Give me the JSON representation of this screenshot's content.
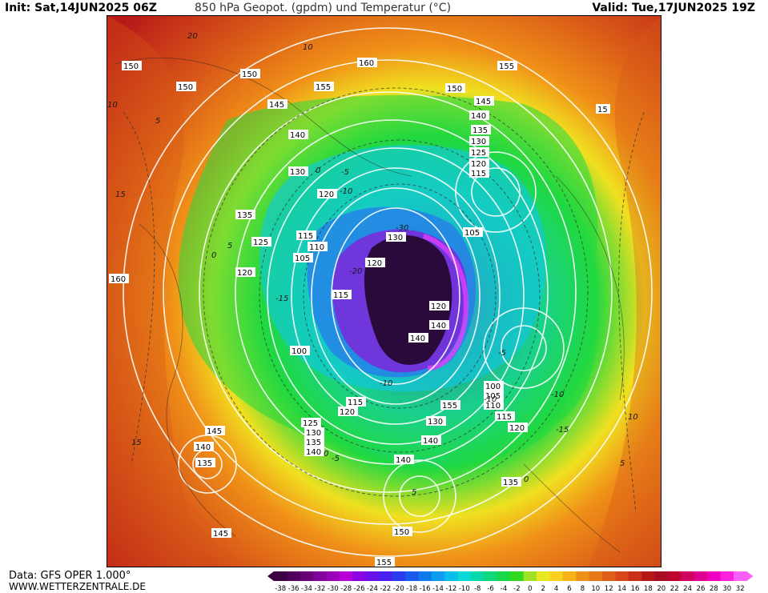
{
  "header": {
    "init": "Init: Sat,14JUN2025 06Z",
    "title": "850 hPa Geopot. (gpdm) und Temperatur (°C)",
    "valid": "Valid: Tue,17JUN2025 19Z"
  },
  "footer": {
    "source": "Data: GFS OPER 1.000°",
    "website": "WWW.WETTERZENTRALE.DE"
  },
  "colors": {
    "arctic_core": "#2a0a3a",
    "purple": "#8a1ad8",
    "magenta": "#e040ff",
    "blue": "#2a6ef2",
    "cyan": "#10c8e8",
    "green": "#20d840",
    "yellow": "#f0e020",
    "orange": "#f09018",
    "dark_orange": "#d85818",
    "red": "#b81818",
    "contour": "#ffffff"
  },
  "legend": {
    "ticks": [
      "-38",
      "-36",
      "-34",
      "-32",
      "-30",
      "-28",
      "-26",
      "-24",
      "-22",
      "-20",
      "-18",
      "-16",
      "-14",
      "-12",
      "-10",
      "-8",
      "-6",
      "-4",
      "-2",
      "0",
      "2",
      "4",
      "6",
      "8",
      "10",
      "12",
      "14",
      "16",
      "18",
      "20",
      "22",
      "24",
      "26",
      "28",
      "30",
      "32"
    ],
    "colors": [
      "#3a0040",
      "#50005a",
      "#6a0078",
      "#84009a",
      "#9c00b8",
      "#b800d8",
      "#8a00e0",
      "#6a10e8",
      "#4a20f0",
      "#2a3cf0",
      "#1a5af0",
      "#107af0",
      "#0c9cf0",
      "#08bcec",
      "#08d8d8",
      "#08d8a8",
      "#10d878",
      "#18d848",
      "#30d820",
      "#a0e020",
      "#e8e820",
      "#f8d020",
      "#f8b018",
      "#f09018",
      "#e87818",
      "#e06018",
      "#d84818",
      "#c83018",
      "#b81818",
      "#a80c20",
      "#c00030",
      "#d00060",
      "#e00090",
      "#f000c0",
      "#ff20e0",
      "#ff60f8"
    ]
  },
  "geopotential_labels": [
    "150",
    "150",
    "150",
    "160",
    "155",
    "155",
    "150",
    "145",
    "145",
    "140",
    "140",
    "135",
    "130",
    "125",
    "120",
    "115",
    "130",
    "120",
    "135",
    "125",
    "115",
    "110",
    "105",
    "120",
    "160",
    "105",
    "130",
    "120",
    "115",
    "120",
    "100",
    "140",
    "140",
    "100",
    "105",
    "110",
    "115",
    "120",
    "115",
    "120",
    "125",
    "130",
    "135",
    "140",
    "130",
    "140",
    "140",
    "135",
    "145",
    "140",
    "135",
    "145",
    "150",
    "155",
    "155",
    "15"
  ],
  "temperature_labels": [
    "20",
    "10",
    "10",
    "5",
    "0",
    "-5",
    "-10",
    "-15",
    "-20",
    "-30",
    "-5",
    "-10",
    "-15",
    "5",
    "0",
    "-10",
    "10",
    "15",
    "5",
    "0",
    "-5",
    "-10",
    "15",
    "5",
    "0"
  ]
}
